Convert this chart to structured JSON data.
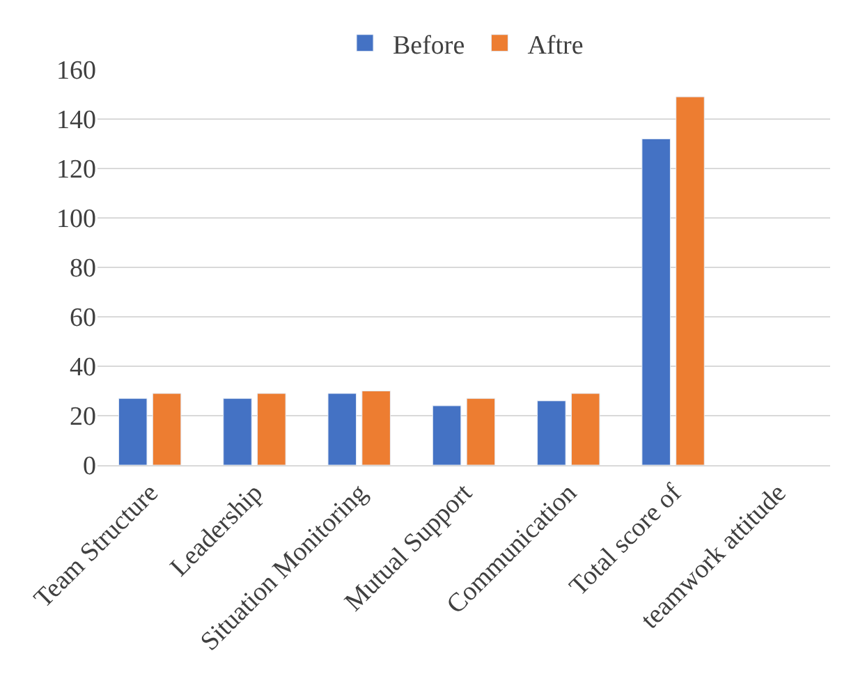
{
  "chart_data": {
    "type": "bar",
    "categories": [
      "Team Structure",
      "Leadership",
      "Situation Monitoring",
      "Mutual Support",
      "Communication",
      "Total score of",
      "teamwork attitude"
    ],
    "series": [
      {
        "name": "Before",
        "color": "#4472c4",
        "values": [
          27,
          27,
          29,
          24,
          26,
          132,
          null
        ]
      },
      {
        "name": "Aftre",
        "color": "#ed7d31",
        "values": [
          29,
          29,
          30,
          27,
          29,
          149,
          null
        ]
      }
    ],
    "ylim": [
      0,
      160
    ],
    "yticks": [
      0,
      20,
      40,
      60,
      80,
      100,
      120,
      140,
      160
    ],
    "grid": "y",
    "legend": "top"
  }
}
